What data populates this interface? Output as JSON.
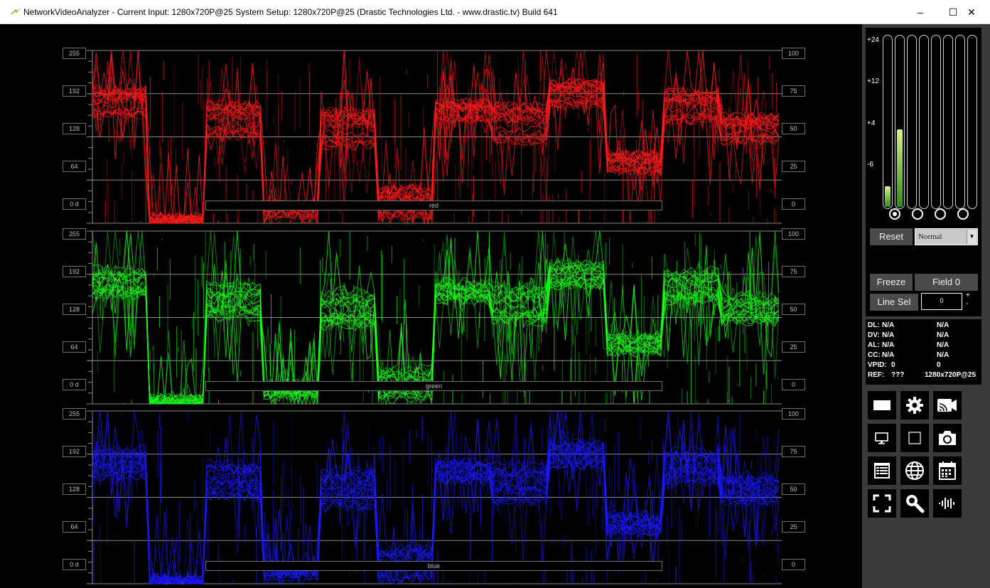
{
  "window": {
    "title": "NetworkVideoAnalyzer - Current Input: 1280x720P@25  System Setup: 1280x720P@25    (Drastic Technologies Ltd. - www.drastic.tv) Build 641",
    "minimize": "–",
    "maximize": "☐",
    "close": "✕"
  },
  "scopes": [
    {
      "channel": "red",
      "color": "#ff1a1a",
      "left_scale": [
        "255",
        "192",
        "128",
        "64",
        "0 d"
      ],
      "right_scale": [
        "100",
        "75",
        "50",
        "25",
        "0"
      ]
    },
    {
      "channel": "green",
      "color": "#1aff1a",
      "left_scale": [
        "255",
        "192",
        "128",
        "64",
        "0 d"
      ],
      "right_scale": [
        "100",
        "75",
        "50",
        "25",
        "0"
      ]
    },
    {
      "channel": "blue",
      "color": "#1a1aff",
      "left_scale": [
        "255",
        "192",
        "128",
        "64",
        "0 d"
      ],
      "right_scale": [
        "100",
        "75",
        "50",
        "25",
        "0"
      ]
    }
  ],
  "audio_meter": {
    "scale": [
      "+24",
      "+12",
      "+4",
      "-6"
    ],
    "channels": 8,
    "levels": [
      0.12,
      0.45,
      0,
      0,
      0,
      0,
      0,
      0
    ],
    "selected_pair": 0,
    "pairs": 4
  },
  "controls": {
    "reset": "Reset",
    "mode": "Normal",
    "freeze": "Freeze",
    "field": "Field 0",
    "line_sel": "Line Sel",
    "line_value": "0",
    "plus": "+",
    "minus": "-"
  },
  "info": [
    {
      "label": "DL:",
      "value": "N/A",
      "value2": "N/A"
    },
    {
      "label": "DV:",
      "value": "N/A",
      "value2": "N/A"
    },
    {
      "label": "AL:",
      "value": "N/A",
      "value2": "N/A"
    },
    {
      "label": "CC:",
      "value": "N/A",
      "value2": "N/A"
    },
    {
      "label": "VPID:",
      "value": "0",
      "value2": "0"
    },
    {
      "label": "REF:",
      "value": "???",
      "value2": "1280x720P@25"
    }
  ],
  "tools": [
    "rectangle-icon",
    "gear-icon",
    "cast-camera-icon",
    "monitor-icon",
    "square-outline-icon",
    "camera-icon",
    "list-icon",
    "globe-icon",
    "calendar-icon",
    "fullscreen-icon",
    "search-icon",
    "waveform-icon"
  ]
}
